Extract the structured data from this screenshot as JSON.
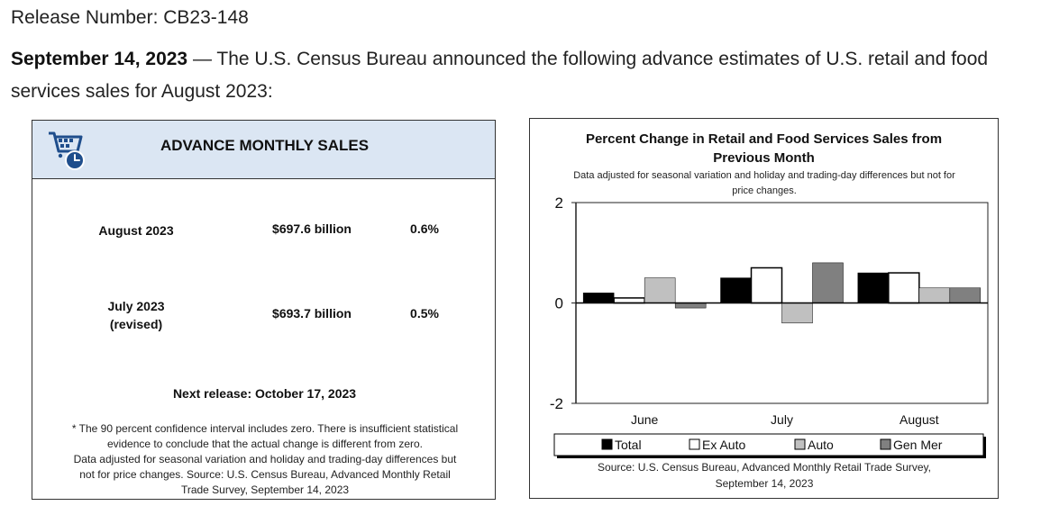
{
  "header": {
    "release_number": "Release Number: CB23-148",
    "date": "September 14, 2023",
    "announcement": " — The U.S. Census Bureau announced the following advance estimates of U.S. retail and food services sales for August 2023:"
  },
  "advance_sales": {
    "title": "ADVANCE MONTHLY SALES",
    "icon": "shopping-cart-clock-icon",
    "rows": [
      {
        "month_line1": "August 2023",
        "month_line2": "",
        "value": "$697.6 billion",
        "pct": "0.6%"
      },
      {
        "month_line1": "July 2023",
        "month_line2": "(revised)",
        "value": "$693.7 billion",
        "pct": "0.5%"
      }
    ],
    "next_release": "Next release: October 17, 2023",
    "footnote_line1": "* The 90 percent confidence interval includes zero. There is insufficient statistical",
    "footnote_line2": "evidence to conclude that the actual change is different from zero.",
    "footnote_line3": "Data adjusted for seasonal variation and holiday and trading-day differences but",
    "footnote_line4": "not for price changes. Source: U.S. Census Bureau, Advanced Monthly Retail",
    "footnote_line5": "Trade Survey, September 14, 2023"
  },
  "chart_data": {
    "type": "bar",
    "title_line1": "Percent Change in Retail and Food Services Sales from",
    "title_line2": "Previous Month",
    "subtitle_line1": "Data adjusted for seasonal variation and holiday and trading-day differences but not for",
    "subtitle_line2": "price changes.",
    "categories": [
      "June",
      "July",
      "August"
    ],
    "ylim": [
      -2,
      2
    ],
    "yticks": [
      "2",
      "0",
      "-2"
    ],
    "ytick_values": [
      2,
      0,
      -2
    ],
    "series": [
      {
        "name": "Total",
        "values": [
          0.2,
          0.5,
          0.6
        ],
        "color": "#000000"
      },
      {
        "name": "Ex Auto",
        "values": [
          0.1,
          0.7,
          0.6
        ],
        "color": "#ffffff"
      },
      {
        "name": "Auto",
        "values": [
          0.5,
          -0.4,
          0.3
        ],
        "color": "#c0c0c0"
      },
      {
        "name": "Gen Mer",
        "values": [
          -0.1,
          0.8,
          0.3
        ],
        "color": "#808080"
      }
    ],
    "source_line1": "Source: U.S. Census Bureau, Advanced Monthly Retail Trade Survey,",
    "source_line2": "September 14, 2023"
  }
}
